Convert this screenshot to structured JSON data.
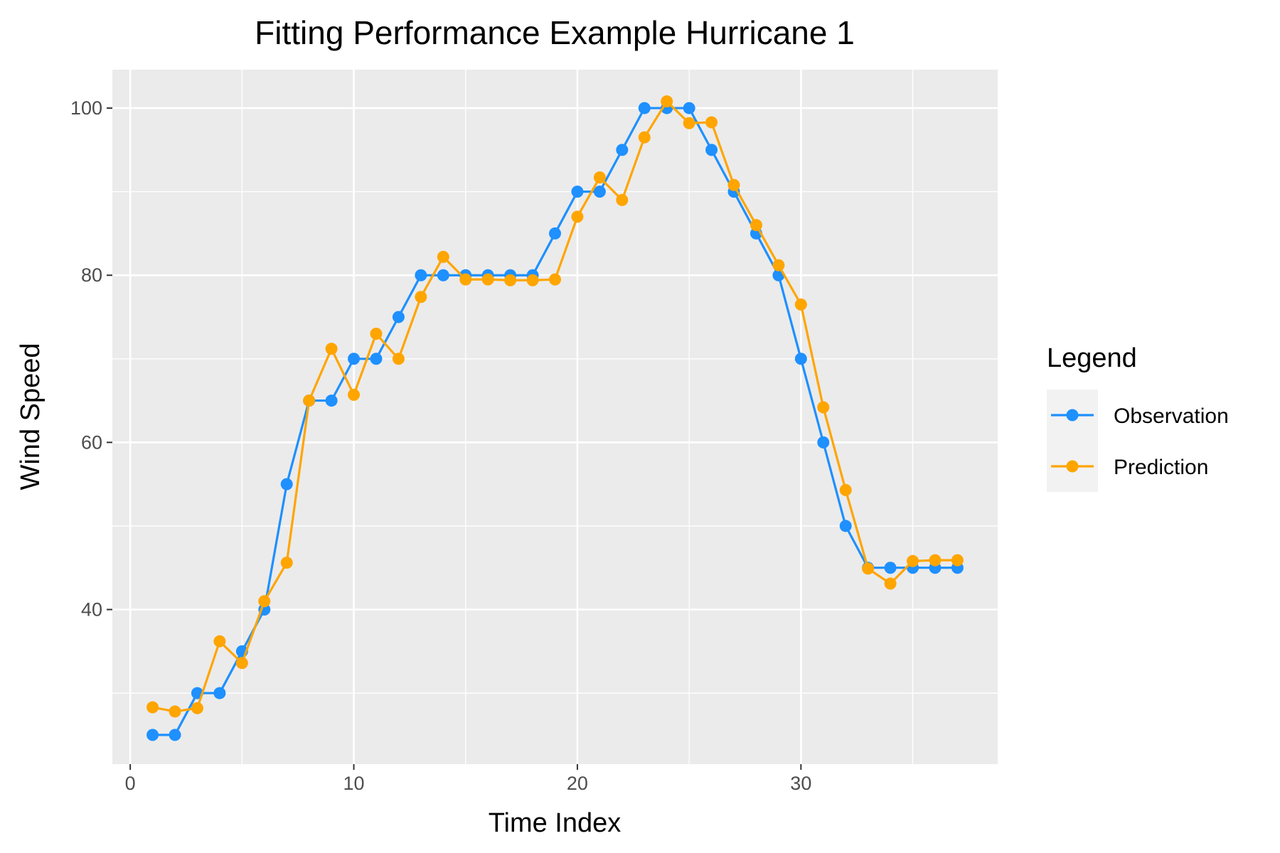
{
  "chart_data": {
    "type": "line",
    "title": "Fitting Performance Example Hurricane 1",
    "xlabel": "Time Index",
    "ylabel": "Wind Speed",
    "xlim": [
      -0.8,
      38.8
    ],
    "ylim": [
      21.5,
      104.6
    ],
    "x_ticks": [
      0,
      10,
      20,
      30
    ],
    "y_ticks": [
      40,
      60,
      80,
      100
    ],
    "x_tick_labels": [
      "0",
      "10",
      "20",
      "30"
    ],
    "y_tick_labels": [
      "40",
      "60",
      "80",
      "100"
    ],
    "grid": true,
    "legend": {
      "title": "Legend",
      "placement": "right"
    },
    "x": [
      1,
      2,
      3,
      4,
      5,
      6,
      7,
      8,
      9,
      10,
      11,
      12,
      13,
      14,
      15,
      16,
      17,
      18,
      19,
      20,
      21,
      22,
      23,
      24,
      25,
      26,
      27,
      28,
      29,
      30,
      31,
      32,
      33,
      34,
      35,
      36,
      37
    ],
    "series": [
      {
        "name": "Observation",
        "color": "#1e90ff",
        "values": [
          25,
          25,
          30,
          30,
          35,
          40,
          55,
          65,
          65,
          70,
          70,
          75,
          80,
          80,
          80,
          80,
          80,
          80,
          85,
          90,
          90,
          95,
          100,
          100,
          100,
          95,
          90,
          85,
          80,
          70,
          60,
          50,
          45,
          45,
          45,
          45,
          45
        ]
      },
      {
        "name": "Prediction",
        "color": "#ffa500",
        "values": [
          28.3,
          27.8,
          28.2,
          36.2,
          33.6,
          41,
          45.6,
          65,
          71.2,
          65.7,
          73,
          70,
          77.4,
          82.2,
          79.5,
          79.5,
          79.4,
          79.4,
          79.5,
          87,
          91.7,
          89,
          96.5,
          100.8,
          98.2,
          98.3,
          90.8,
          86,
          81.2,
          76.5,
          64.2,
          54.3,
          44.9,
          43.1,
          45.8,
          45.9,
          45.9
        ]
      }
    ]
  }
}
